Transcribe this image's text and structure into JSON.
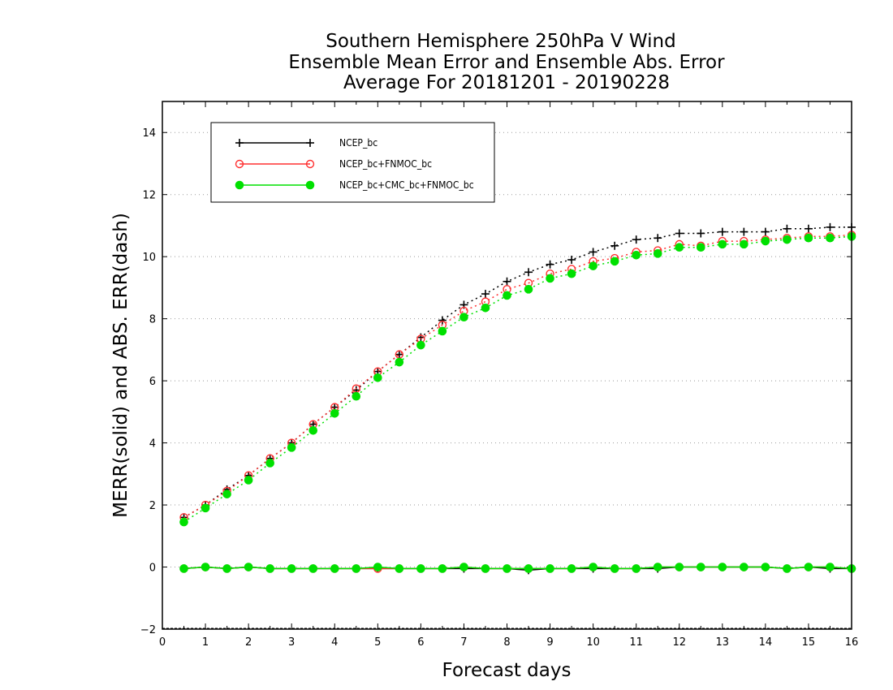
{
  "chart_data": {
    "type": "line",
    "title": [
      "Southern Hemisphere 250hPa V Wind",
      "Ensemble Mean Error and Ensemble Abs. Error",
      "Average For 20181201 - 20190228"
    ],
    "xlabel": "Forecast days",
    "ylabel": "MERR(solid) and ABS. ERR(dash)",
    "xlim": [
      0,
      16
    ],
    "ylim": [
      -2,
      15
    ],
    "xticks": [
      0,
      1,
      2,
      3,
      4,
      5,
      6,
      7,
      8,
      9,
      10,
      11,
      12,
      13,
      14,
      15,
      16
    ],
    "yticks": [
      -2,
      0,
      2,
      4,
      6,
      8,
      10,
      12,
      14
    ],
    "grid": "horizontal dotted",
    "legend_position": "top-left",
    "x": [
      0.5,
      1,
      1.5,
      2,
      2.5,
      3,
      3.5,
      4,
      4.5,
      5,
      5.5,
      6,
      6.5,
      7,
      7.5,
      8,
      8.5,
      9,
      9.5,
      10,
      10.5,
      11,
      11.5,
      12,
      12.5,
      13,
      13.5,
      14,
      14.5,
      15,
      15.5,
      16
    ],
    "series": [
      {
        "name": "NCEP_bc",
        "color": "#000000",
        "marker": "plus",
        "abs_error": [
          1.6,
          2.0,
          2.5,
          2.95,
          3.5,
          4.0,
          4.6,
          5.15,
          5.7,
          6.3,
          6.85,
          7.4,
          7.95,
          8.45,
          8.8,
          9.2,
          9.5,
          9.75,
          9.9,
          10.15,
          10.35,
          10.55,
          10.6,
          10.75,
          10.75,
          10.8,
          10.8,
          10.8,
          10.9,
          10.9,
          10.95,
          10.95
        ],
        "mean_error": [
          -0.05,
          0.0,
          -0.05,
          0.0,
          -0.05,
          -0.05,
          -0.05,
          -0.05,
          -0.05,
          -0.05,
          -0.05,
          -0.05,
          -0.05,
          -0.05,
          -0.05,
          -0.05,
          -0.1,
          -0.05,
          -0.05,
          -0.05,
          -0.05,
          -0.05,
          -0.05,
          0.0,
          0.0,
          0.0,
          0.0,
          0.0,
          -0.05,
          0.0,
          -0.05,
          -0.05
        ]
      },
      {
        "name": "NCEP_bc+FNMOC_bc",
        "color": "#ff3030",
        "marker": "open-circle",
        "abs_error": [
          1.6,
          2.0,
          2.45,
          2.95,
          3.5,
          4.0,
          4.6,
          5.15,
          5.75,
          6.3,
          6.85,
          7.35,
          7.8,
          8.25,
          8.55,
          8.95,
          9.15,
          9.45,
          9.6,
          9.85,
          9.95,
          10.15,
          10.2,
          10.4,
          10.35,
          10.5,
          10.5,
          10.55,
          10.6,
          10.65,
          10.65,
          10.7
        ],
        "mean_error": [
          -0.05,
          0.0,
          -0.05,
          0.0,
          -0.05,
          -0.05,
          -0.05,
          -0.05,
          -0.05,
          -0.05,
          -0.05,
          -0.05,
          -0.05,
          0.0,
          -0.05,
          -0.05,
          -0.05,
          -0.05,
          -0.05,
          0.0,
          -0.05,
          -0.05,
          0.0,
          0.0,
          0.0,
          0.0,
          0.0,
          0.0,
          -0.05,
          0.0,
          0.0,
          -0.05
        ]
      },
      {
        "name": "NCEP_bc+CMC_bc+FNMOC_bc",
        "color": "#00e000",
        "marker": "filled-circle",
        "abs_error": [
          1.45,
          1.9,
          2.35,
          2.8,
          3.35,
          3.85,
          4.4,
          4.95,
          5.5,
          6.1,
          6.6,
          7.15,
          7.6,
          8.05,
          8.35,
          8.75,
          8.95,
          9.3,
          9.45,
          9.7,
          9.85,
          10.05,
          10.1,
          10.3,
          10.3,
          10.4,
          10.4,
          10.5,
          10.55,
          10.6,
          10.6,
          10.65
        ],
        "mean_error": [
          -0.05,
          0.0,
          -0.05,
          0.0,
          -0.05,
          -0.05,
          -0.05,
          -0.05,
          -0.05,
          0.0,
          -0.05,
          -0.05,
          -0.05,
          0.0,
          -0.05,
          -0.05,
          -0.05,
          -0.05,
          -0.05,
          0.0,
          -0.05,
          -0.05,
          0.0,
          0.0,
          0.0,
          0.0,
          0.0,
          0.0,
          -0.05,
          0.0,
          0.0,
          -0.05
        ]
      }
    ]
  }
}
